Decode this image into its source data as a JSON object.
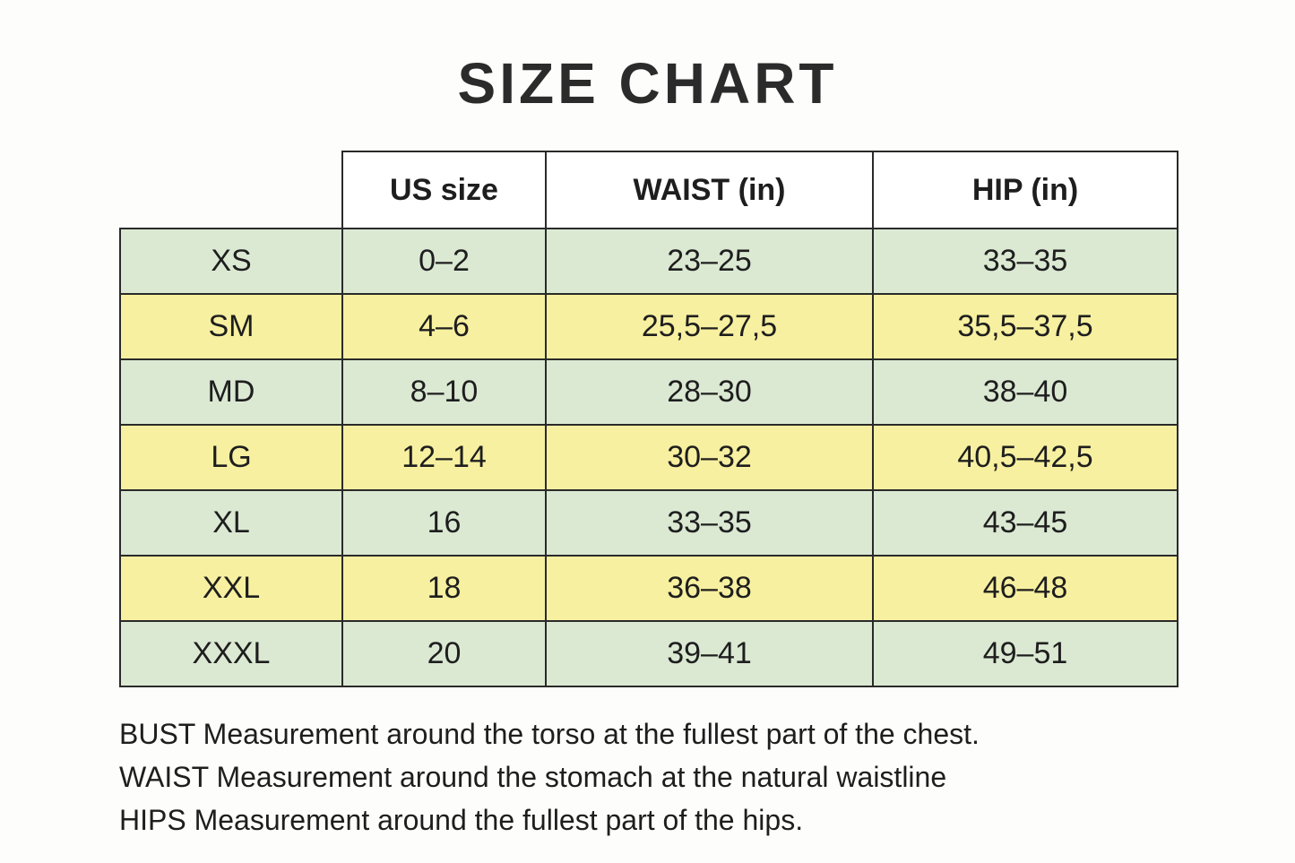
{
  "chart_data": {
    "type": "table",
    "title": "SIZE CHART",
    "columns": [
      "",
      "US size",
      "WAIST (in)",
      "HIP (in)"
    ],
    "rows": [
      [
        "XS",
        "0–2",
        "23–25",
        "33–35"
      ],
      [
        "SM",
        "4–6",
        "25,5–27,5",
        "35,5–37,5"
      ],
      [
        "MD",
        "8–10",
        "28–30",
        "38–40"
      ],
      [
        "LG",
        "12–14",
        "30–32",
        "40,5–42,5"
      ],
      [
        "XL",
        "16",
        "33–35",
        "43–45"
      ],
      [
        "XXL",
        "18",
        "36–38",
        "46–48"
      ],
      [
        "XXXL",
        "20",
        "39–41",
        "49–51"
      ]
    ],
    "row_stripe_pattern": [
      "green",
      "yellow",
      "green",
      "yellow",
      "green",
      "yellow",
      "green"
    ],
    "notes": [
      "BUST Measurement around the torso at the fullest part of the chest.",
      "WAIST Measurement around the stomach at the natural waistline",
      "HIPS Measurement around the fullest part of the hips."
    ],
    "units": "inches",
    "layout_hints": {
      "header_background": "#ffffff",
      "first_column_has_no_header": true,
      "grid_on": true
    }
  },
  "colors": {
    "row_green": "#dbe9d3",
    "row_yellow": "#f7f0a0",
    "border": "#2a2a2a",
    "text": "#1e1e1e",
    "header_bg": "#ffffff",
    "page_bg": "#fdfdfb"
  }
}
